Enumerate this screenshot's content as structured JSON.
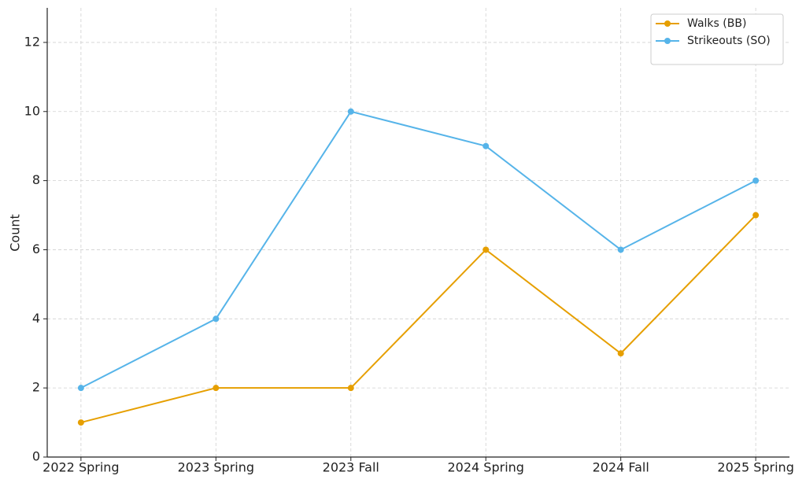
{
  "chart_data": {
    "type": "line",
    "y_label": "Count",
    "categories": [
      "2022 Spring",
      "2023 Spring",
      "2023 Fall",
      "2024 Spring",
      "2024 Fall",
      "2025 Spring"
    ],
    "series": [
      {
        "name": "Walks (BB)",
        "color": "#e69f00",
        "values": [
          1,
          2,
          2,
          6,
          3,
          7
        ]
      },
      {
        "name": "Strikeouts (SO)",
        "color": "#56b4e9",
        "values": [
          2,
          4,
          10,
          9,
          6,
          8
        ]
      }
    ],
    "ylim": [
      0,
      13
    ],
    "yticks": [
      0,
      2,
      4,
      6,
      8,
      10,
      12
    ],
    "grid": true,
    "legend": "upper-right"
  }
}
